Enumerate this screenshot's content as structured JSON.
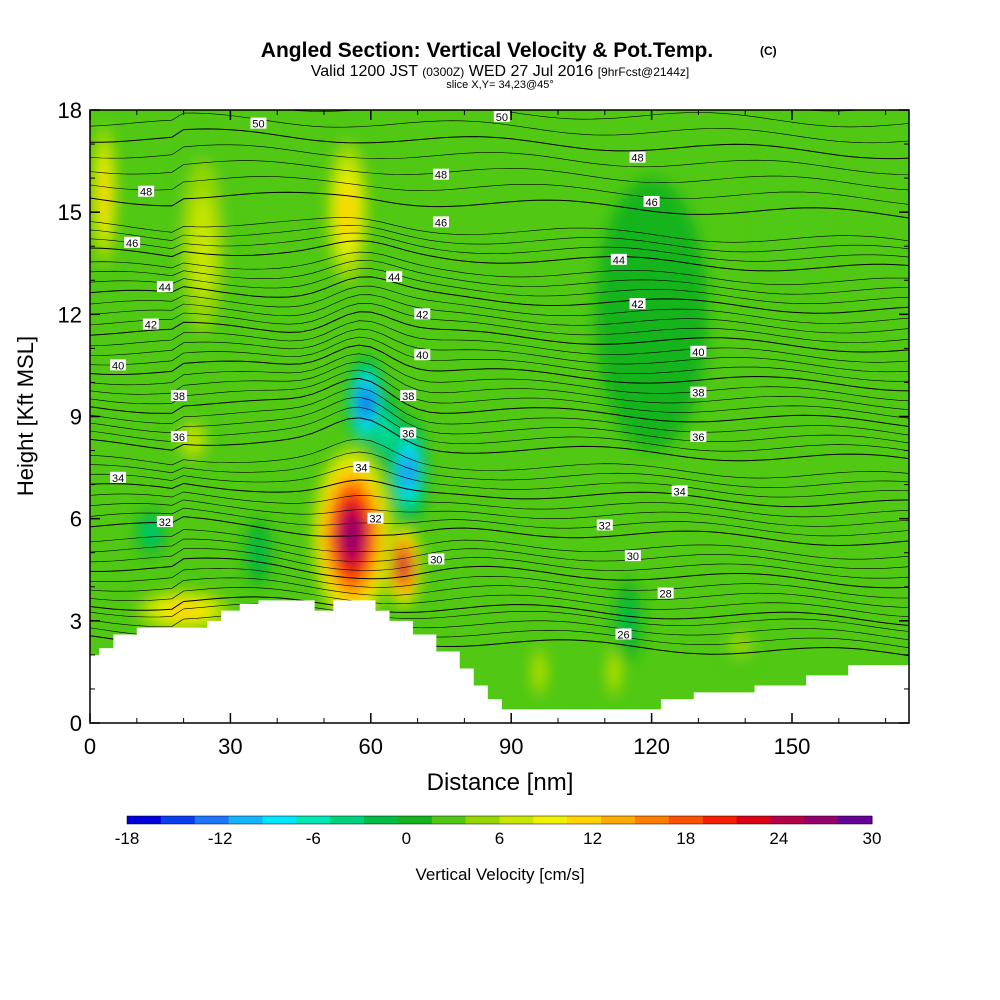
{
  "chart_data": {
    "type": "heatmap",
    "title": "Angled Section: Vertical Velocity & Pot.Temp.",
    "title_mark": "(C)",
    "subtitle_parts": [
      "Valid 1200 JST",
      "(0300Z)",
      "WED 27 Jul 2016",
      "[9hrFcst@2144z]"
    ],
    "subtitle2": "slice X,Y= 34,23@45°",
    "xlabel": "Distance [nm]",
    "ylabel": "Height [Kft MSL]",
    "xlim": [
      0,
      175
    ],
    "ylim": [
      0,
      18
    ],
    "x_ticks": [
      0,
      30,
      60,
      90,
      120,
      150
    ],
    "y_ticks": [
      0,
      3,
      6,
      9,
      12,
      15,
      18
    ],
    "colorbar": {
      "label": "Vertical Velocity [cm/s]",
      "min": -18,
      "max": 30,
      "step": 2,
      "tick_values": [
        -18,
        -12,
        -6,
        0,
        6,
        12,
        18,
        24,
        30
      ],
      "colors": [
        "#0000dc",
        "#0a3cf0",
        "#1e78ff",
        "#14b4ff",
        "#00e6ff",
        "#00e6b4",
        "#00d27d",
        "#00be46",
        "#14b41e",
        "#50c814",
        "#96d700",
        "#c8e600",
        "#f0f000",
        "#ffd200",
        "#ffaa00",
        "#ff7d00",
        "#ff5000",
        "#f51e00",
        "#dc0014",
        "#b40046",
        "#96006e",
        "#640096"
      ]
    },
    "terrain": {
      "x": [
        0,
        2,
        2,
        5,
        5,
        10,
        10,
        25,
        25,
        28,
        28,
        32,
        32,
        36,
        36,
        48,
        48,
        52,
        52,
        61,
        61,
        64,
        64,
        69,
        69,
        74,
        74,
        79,
        79,
        82,
        82,
        85,
        85,
        88,
        88,
        91,
        91,
        122,
        122,
        129,
        129,
        142,
        142,
        153,
        153,
        162,
        162,
        175
      ],
      "top": [
        2.0,
        2.0,
        2.2,
        2.2,
        2.6,
        2.6,
        2.8,
        2.8,
        3.0,
        3.0,
        3.3,
        3.3,
        3.5,
        3.5,
        3.6,
        3.6,
        3.3,
        3.3,
        3.6,
        3.6,
        3.3,
        3.3,
        3.0,
        3.0,
        2.6,
        2.6,
        2.1,
        2.1,
        1.6,
        1.6,
        1.1,
        1.1,
        0.7,
        0.7,
        0.4,
        0.4,
        0.4,
        0.4,
        0.7,
        0.7,
        0.9,
        0.9,
        1.1,
        1.1,
        1.4,
        1.4,
        1.7,
        1.7
      ]
    },
    "w_features": [
      {
        "x": 56,
        "y": 5.5,
        "rx": 9,
        "ry": 2.8,
        "w": 24
      },
      {
        "x": 67,
        "y": 4.6,
        "rx": 4,
        "ry": 1.3,
        "w": 22
      },
      {
        "x": 20,
        "y": 3.3,
        "rx": 12,
        "ry": 0.7,
        "w": 10
      },
      {
        "x": 59,
        "y": 9.4,
        "rx": 4,
        "ry": 1.4,
        "w": -16
      },
      {
        "x": 68,
        "y": 7.4,
        "rx": 4,
        "ry": 1.6,
        "w": -14
      },
      {
        "x": 63,
        "y": 8.6,
        "rx": 4,
        "ry": 1.2,
        "w": -8
      },
      {
        "x": 55,
        "y": 15.0,
        "rx": 5,
        "ry": 2.5,
        "w": 10
      },
      {
        "x": 3,
        "y": 15.5,
        "rx": 3,
        "ry": 2.5,
        "w": 10
      },
      {
        "x": 24,
        "y": 14.0,
        "rx": 6,
        "ry": 3.5,
        "w": 6
      },
      {
        "x": 22,
        "y": 8.3,
        "rx": 4,
        "ry": 0.8,
        "w": 7
      },
      {
        "x": 13,
        "y": 5.6,
        "rx": 3,
        "ry": 0.7,
        "w": -6
      },
      {
        "x": 36,
        "y": 5.0,
        "rx": 3,
        "ry": 1.0,
        "w": -5
      },
      {
        "x": 115,
        "y": 3.0,
        "rx": 3,
        "ry": 1.2,
        "w": -5
      },
      {
        "x": 120,
        "y": 12.0,
        "rx": 12,
        "ry": 4.0,
        "w": -3
      },
      {
        "x": 150,
        "y": 15.0,
        "rx": 8,
        "ry": 2.5,
        "w": 3
      },
      {
        "x": 96,
        "y": 1.5,
        "rx": 2,
        "ry": 1.0,
        "w": 6
      },
      {
        "x": 112,
        "y": 1.5,
        "rx": 2,
        "ry": 1.0,
        "w": 6
      },
      {
        "x": 139,
        "y": 2.3,
        "rx": 4,
        "ry": 0.6,
        "w": 5
      }
    ],
    "theta_contours": [
      {
        "level": 26,
        "y0": 2.7,
        "labels": [
          [
            114,
            2.6
          ]
        ]
      },
      {
        "level": 28,
        "y0": 3.7,
        "labels": [
          [
            123,
            3.8
          ]
        ]
      },
      {
        "level": 30,
        "y0": 4.8,
        "labels": [
          [
            74,
            4.8
          ],
          [
            116,
            4.9
          ]
        ]
      },
      {
        "level": 32,
        "y0": 6.0,
        "labels": [
          [
            16,
            5.9
          ],
          [
            61,
            6.0
          ],
          [
            110,
            5.8
          ]
        ]
      },
      {
        "level": 34,
        "y0": 7.1,
        "labels": [
          [
            6,
            7.2
          ],
          [
            58,
            7.5
          ],
          [
            126,
            6.8
          ]
        ]
      },
      {
        "level": 36,
        "y0": 8.4,
        "labels": [
          [
            19,
            8.4
          ],
          [
            68,
            8.5
          ],
          [
            130,
            8.4
          ]
        ]
      },
      {
        "level": 38,
        "y0": 9.5,
        "labels": [
          [
            19,
            9.6
          ],
          [
            68,
            9.6
          ],
          [
            130,
            9.7
          ]
        ]
      },
      {
        "level": 40,
        "y0": 10.6,
        "labels": [
          [
            6,
            10.5
          ],
          [
            71,
            10.8
          ],
          [
            130,
            10.9
          ]
        ]
      },
      {
        "level": 42,
        "y0": 11.7,
        "labels": [
          [
            13,
            11.7
          ],
          [
            71,
            12.0
          ],
          [
            117,
            12.3
          ]
        ]
      },
      {
        "level": 44,
        "y0": 12.8,
        "labels": [
          [
            16,
            12.8
          ],
          [
            65,
            13.1
          ],
          [
            113,
            13.6
          ]
        ]
      },
      {
        "level": 46,
        "y0": 14.0,
        "labels": [
          [
            9,
            14.1
          ],
          [
            75,
            14.7
          ],
          [
            120,
            15.3
          ]
        ]
      },
      {
        "level": 48,
        "y0": 15.6,
        "labels": [
          [
            12,
            15.6
          ],
          [
            75,
            16.1
          ],
          [
            117,
            16.6
          ]
        ]
      },
      {
        "level": 50,
        "y0": 17.4,
        "labels": [
          [
            36,
            17.6
          ],
          [
            88,
            17.8
          ]
        ]
      }
    ]
  }
}
